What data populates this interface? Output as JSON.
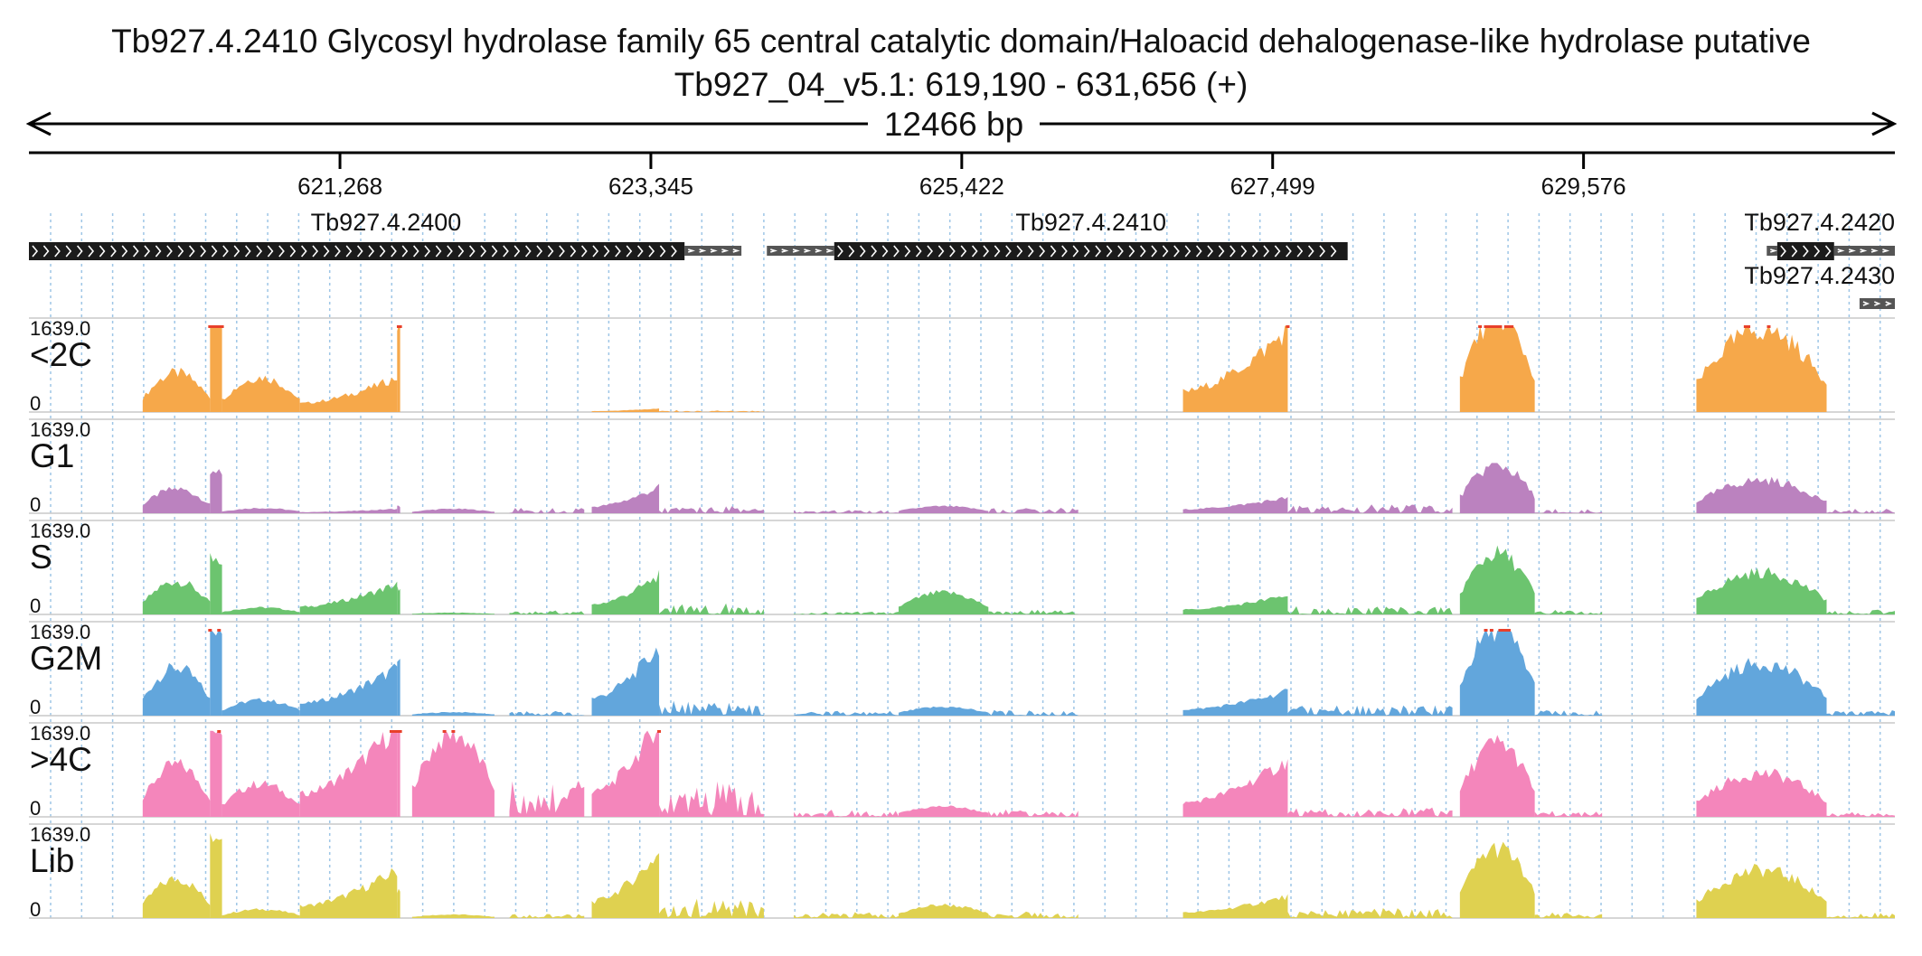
{
  "header": {
    "title": "Tb927.4.2410  Glycosyl hydrolase family 65 central catalytic domain/Haloacid dehalogenase-like hydrolase  putative",
    "locus": "Tb927_04_v5.1: 619,190 - 631,656 (+)",
    "span_label": "12466 bp"
  },
  "ruler": {
    "start": 619190,
    "end": 631656,
    "ticks": [
      {
        "pos": 621268,
        "label": "621,268"
      },
      {
        "pos": 623345,
        "label": "623,345"
      },
      {
        "pos": 625422,
        "label": "625,422"
      },
      {
        "pos": 627499,
        "label": "627,499"
      },
      {
        "pos": 629576,
        "label": "629,576"
      }
    ]
  },
  "genes": [
    {
      "name": "Tb927.4.2400",
      "start": 619190,
      "end": 623570,
      "utr3_end": 623950
    },
    {
      "name": "Tb927.4.2410",
      "utr5_start": 624120,
      "start": 624570,
      "end": 628000
    },
    {
      "name": "Tb927.4.2420",
      "utr5_start": 630800,
      "start": 630870,
      "end": 631250,
      "utr3_end": 631656
    },
    {
      "name": "Tb927.4.2430",
      "utr5_start": 631420,
      "start": 631420,
      "end": 631656
    }
  ],
  "tracks": [
    {
      "name": "<2C",
      "max_label": "1639.0",
      "min_label": "0",
      "color": "#f6a84a"
    },
    {
      "name": "G1",
      "max_label": "1639.0",
      "min_label": "0",
      "color": "#bb82bf"
    },
    {
      "name": "S",
      "max_label": "1639.0",
      "min_label": "0",
      "color": "#6cc46f"
    },
    {
      "name": "G2M",
      "max_label": "1639.0",
      "min_label": "0",
      "color": "#62a6dc"
    },
    {
      "name": ">4C",
      "max_label": "1639.0",
      "min_label": "0",
      "color": "#f486bb"
    },
    {
      "name": "Lib",
      "max_label": "1639.0",
      "min_label": "0",
      "color": "#dfd150"
    }
  ],
  "colors": {
    "clip": "#e8402b",
    "gene_fill": "#1b1b1b",
    "utr_fill": "#555555",
    "grid": "#9ec6e6",
    "baseline": "#c8c8c8"
  }
}
